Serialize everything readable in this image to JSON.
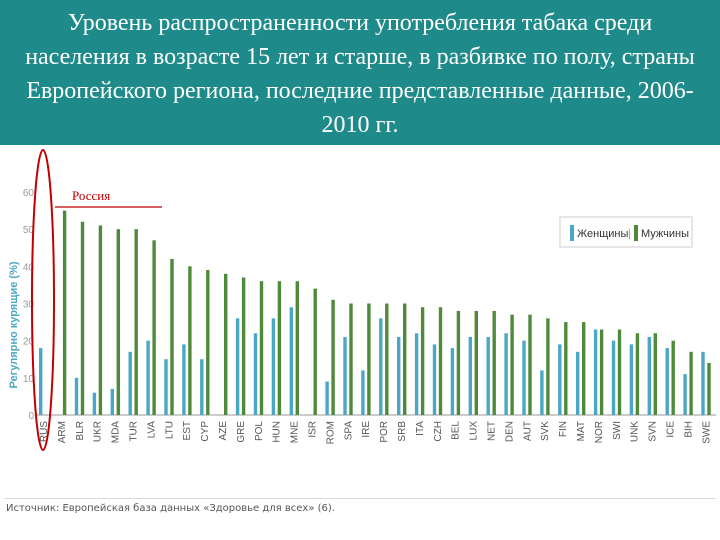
{
  "header": {
    "title": "Уровень распространенности употребления табака среди населения в возрасте 15 лет  и старше, в разбивке по полу, страны Европейского региона, последние представленные данные, 2006-2010 гг."
  },
  "annotation": {
    "text": "Россия",
    "color": "#c00000"
  },
  "source": "Источник: Европейская база данных «Здоровье для всех» (6).",
  "colors": {
    "women": "#4aa8c6",
    "men": "#4f8a3a",
    "axis": "#999999"
  },
  "chart_data": {
    "type": "bar",
    "title": "",
    "xlabel": "",
    "ylabel": "Регулярно курящие (%)",
    "ylim": [
      0,
      60
    ],
    "yticks": [
      0,
      10,
      20,
      30,
      40,
      50,
      60
    ],
    "legend_position": "top-right",
    "categories": [
      "RUS",
      "ARM",
      "BLR",
      "UKR",
      "MDA",
      "TUR",
      "LVA",
      "LTU",
      "EST",
      "CYP",
      "AZE",
      "GRE",
      "POL",
      "HUN",
      "MNE",
      "ISR",
      "ROM",
      "SPA",
      "IRE",
      "POR",
      "SRB",
      "ITA",
      "CZH",
      "BEL",
      "LUX",
      "NET",
      "DEN",
      "AUT",
      "SVK",
      "FIN",
      "MAT",
      "NOR",
      "SWI",
      "UNK",
      "SVN",
      "ICE",
      "BIH",
      "SWE"
    ],
    "series": [
      {
        "name": "Женщины",
        "values": [
          18,
          0,
          10,
          6,
          7,
          17,
          20,
          15,
          19,
          15,
          0,
          26,
          22,
          26,
          29,
          0,
          9,
          21,
          12,
          26,
          21,
          22,
          19,
          18,
          21,
          21,
          22,
          20,
          12,
          19,
          17,
          23,
          20,
          19,
          21,
          18,
          11,
          17
        ]
      },
      {
        "name": "Мужчины",
        "values": [
          0,
          55,
          52,
          51,
          50,
          50,
          47,
          42,
          40,
          39,
          38,
          37,
          36,
          36,
          36,
          34,
          31,
          30,
          30,
          30,
          30,
          29,
          29,
          28,
          28,
          28,
          27,
          27,
          26,
          25,
          25,
          23,
          23,
          22,
          22,
          20,
          17,
          14
        ]
      }
    ]
  }
}
